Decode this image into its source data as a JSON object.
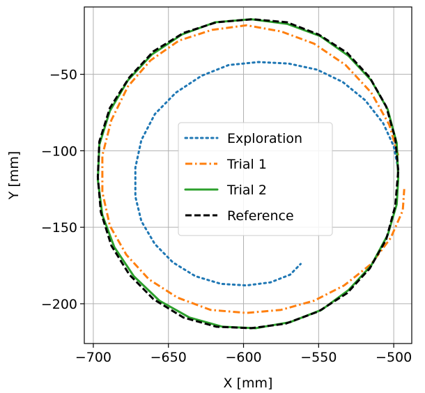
{
  "chart_data": {
    "type": "line",
    "title": "",
    "xlabel": "X [mm]",
    "ylabel": "Y [mm]",
    "xlim": [
      -706,
      -488
    ],
    "ylim": [
      -226,
      -6
    ],
    "grid": true,
    "legend_position": "center",
    "xticks": [
      -700,
      -650,
      -600,
      -550,
      -500
    ],
    "xtick_labels": [
      "−700",
      "−650",
      "−600",
      "−550",
      "−500"
    ],
    "yticks": [
      -50,
      -100,
      -150,
      -200
    ],
    "ytick_labels": [
      "−50",
      "−100",
      "−150",
      "−200"
    ],
    "series": [
      {
        "name": "Exploration",
        "color": "#1f77b4",
        "style": "dotted",
        "points": [
          [
            -497,
            -112
          ],
          [
            -500,
            -97
          ],
          [
            -507,
            -82
          ],
          [
            -519,
            -67
          ],
          [
            -534,
            -55
          ],
          [
            -551,
            -47
          ],
          [
            -570,
            -43
          ],
          [
            -590,
            -42
          ],
          [
            -610,
            -44
          ],
          [
            -628,
            -51
          ],
          [
            -645,
            -62
          ],
          [
            -659,
            -76
          ],
          [
            -668,
            -93
          ],
          [
            -672,
            -111
          ],
          [
            -672,
            -130
          ],
          [
            -668,
            -146
          ],
          [
            -659,
            -161
          ],
          [
            -647,
            -173
          ],
          [
            -632,
            -182
          ],
          [
            -615,
            -187
          ],
          [
            -598,
            -188
          ],
          [
            -582,
            -186
          ],
          [
            -569,
            -181
          ],
          [
            -562,
            -174
          ]
        ]
      },
      {
        "name": "Trial 1",
        "color": "#ff7f0e",
        "style": "dashdot",
        "points": [
          [
            -497,
            -103
          ],
          [
            -503,
            -83
          ],
          [
            -515,
            -62
          ],
          [
            -532,
            -44
          ],
          [
            -553,
            -30
          ],
          [
            -575,
            -22
          ],
          [
            -598,
            -18
          ],
          [
            -621,
            -21
          ],
          [
            -643,
            -28
          ],
          [
            -662,
            -41
          ],
          [
            -677,
            -58
          ],
          [
            -688,
            -80
          ],
          [
            -694,
            -103
          ],
          [
            -694,
            -127
          ],
          [
            -689,
            -149
          ],
          [
            -678,
            -168
          ],
          [
            -663,
            -184
          ],
          [
            -644,
            -196
          ],
          [
            -622,
            -204
          ],
          [
            -598,
            -206
          ],
          [
            -575,
            -204
          ],
          [
            -553,
            -198
          ],
          [
            -533,
            -188
          ],
          [
            -515,
            -174
          ],
          [
            -502,
            -157
          ],
          [
            -494,
            -139
          ],
          [
            -493,
            -125
          ]
        ]
      },
      {
        "name": "Trial 2",
        "color": "#2ca02c",
        "style": "solid",
        "points": [
          [
            -497,
            -118
          ],
          [
            -498,
            -95
          ],
          [
            -504,
            -73
          ],
          [
            -515,
            -54
          ],
          [
            -530,
            -38
          ],
          [
            -549,
            -25
          ],
          [
            -571,
            -17
          ],
          [
            -595,
            -14
          ],
          [
            -619,
            -16
          ],
          [
            -641,
            -24
          ],
          [
            -661,
            -37
          ],
          [
            -677,
            -54
          ],
          [
            -689,
            -74
          ],
          [
            -696,
            -96
          ],
          [
            -697,
            -119
          ],
          [
            -694,
            -142
          ],
          [
            -686,
            -163
          ],
          [
            -673,
            -182
          ],
          [
            -656,
            -198
          ],
          [
            -636,
            -209
          ],
          [
            -614,
            -215
          ],
          [
            -592,
            -216
          ],
          [
            -569,
            -212
          ],
          [
            -548,
            -204
          ],
          [
            -530,
            -191
          ],
          [
            -515,
            -175
          ],
          [
            -504,
            -155
          ],
          [
            -498,
            -135
          ],
          [
            -497,
            -118
          ]
        ]
      },
      {
        "name": "Reference",
        "color": "#000000",
        "style": "dashed",
        "points": [
          [
            -497,
            -113
          ],
          [
            -499,
            -92
          ],
          [
            -505,
            -71
          ],
          [
            -516,
            -52
          ],
          [
            -531,
            -36
          ],
          [
            -550,
            -24
          ],
          [
            -571,
            -16
          ],
          [
            -594,
            -14
          ],
          [
            -618,
            -16
          ],
          [
            -640,
            -23
          ],
          [
            -660,
            -35
          ],
          [
            -676,
            -52
          ],
          [
            -689,
            -72
          ],
          [
            -696,
            -94
          ],
          [
            -697,
            -117
          ],
          [
            -695,
            -140
          ],
          [
            -688,
            -162
          ],
          [
            -676,
            -181
          ],
          [
            -660,
            -197
          ],
          [
            -640,
            -209
          ],
          [
            -618,
            -215
          ],
          [
            -595,
            -216
          ],
          [
            -572,
            -213
          ],
          [
            -550,
            -205
          ],
          [
            -531,
            -193
          ],
          [
            -516,
            -177
          ],
          [
            -505,
            -158
          ],
          [
            -499,
            -136
          ],
          [
            -497,
            -113
          ]
        ]
      }
    ]
  }
}
